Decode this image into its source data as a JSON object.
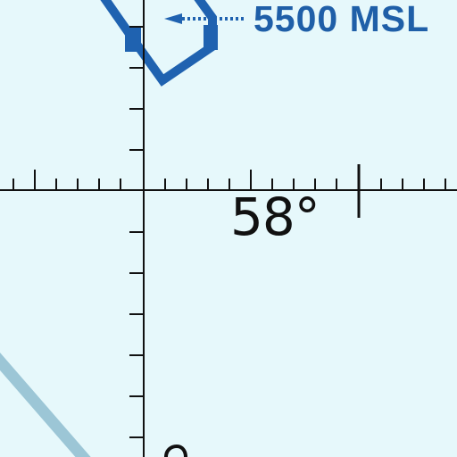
{
  "latitude_label": "58°",
  "airspace_label": "5500 MSL",
  "colors": {
    "background": "#e6f8fb",
    "grid": "#111111",
    "airspace_boundary": "#1f62b0",
    "airspace_label": "#1f5fa8",
    "route": "#9cc6d6"
  },
  "icons": [
    "airspace-boundary-icon",
    "leader-arrow-icon",
    "route-line-icon"
  ]
}
